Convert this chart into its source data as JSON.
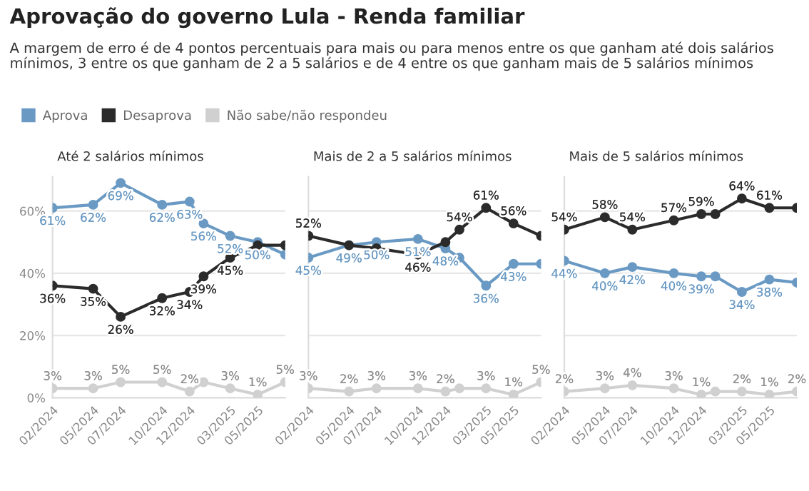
{
  "chart_data": [
    {
      "type": "line",
      "title": "Aprovação do governo Lula - Renda familiar",
      "subtitle": "A margem de erro é de 4 pontos percentuais para mais ou para menos entre os que ganham até dois salários mínimos, 3 entre os que ganham de 2 a 5 salários e de 4 entre os que ganham mais de 5 salários mínimos",
      "legend": "top",
      "grid": "y",
      "marker": "circle",
      "x": [
        "2024-02",
        "2024-05",
        "2024-07",
        "2024-10",
        "2024-12",
        "2025-01",
        "2025-03",
        "2025-05",
        "2025-07"
      ],
      "xlim": [
        "2024-02",
        "2025-07"
      ],
      "xticks": [
        {
          "value": "2024-02",
          "label": "02/2024"
        },
        {
          "value": "2024-05",
          "label": "05/2024"
        },
        {
          "value": "2024-07",
          "label": "07/2024"
        },
        {
          "value": "2024-10",
          "label": "10/2024"
        },
        {
          "value": "2024-12",
          "label": "12/2024"
        },
        {
          "value": "2025-03",
          "label": "03/2025"
        },
        {
          "value": "2025-05",
          "label": "05/2025"
        }
      ],
      "ylim": [
        0,
        71
      ],
      "yticks": [
        {
          "value": 0,
          "label": "0%"
        },
        {
          "value": 20,
          "label": "20%"
        },
        {
          "value": 40,
          "label": "40%"
        },
        {
          "value": 60,
          "label": "60%"
        }
      ],
      "annotations": [
        "Até 2 salários mínimos"
      ],
      "series": [
        {
          "name": "Aprova",
          "color": "#6a9ac4",
          "values": [
            61,
            62,
            69,
            62,
            63,
            56,
            52,
            50,
            46
          ],
          "value_labels": [
            "61%",
            "62%",
            "69%",
            "62%",
            "63%",
            "56%",
            "52%",
            "50%",
            null
          ]
        },
        {
          "name": "Desaprova",
          "color": "#2b2b2b",
          "values": [
            36,
            35,
            26,
            32,
            34,
            39,
            45,
            49,
            49
          ],
          "value_labels": [
            "36%",
            "35%",
            "26%",
            "32%",
            "34%",
            "39%",
            "45%",
            null,
            null
          ]
        },
        {
          "name": "Não sabe/não respondeu",
          "color": "#d0d0d0",
          "values": [
            3,
            3,
            5,
            5,
            2,
            5,
            3,
            1,
            5
          ],
          "value_labels": [
            "3%",
            "3%",
            "5%",
            "5%",
            "2%",
            null,
            "3%",
            "1%",
            "5%"
          ]
        }
      ]
    },
    {
      "type": "line",
      "grid": "y",
      "marker": "circle",
      "tick_labels": "x",
      "x": [
        "2024-02",
        "2024-05",
        "2024-07",
        "2024-10",
        "2024-12",
        "2025-01",
        "2025-03",
        "2025-05",
        "2025-07"
      ],
      "xlim": [
        "2024-02",
        "2025-07"
      ],
      "xticks": [
        {
          "value": "2024-02",
          "label": "02/2024"
        },
        {
          "value": "2024-05",
          "label": "05/2024"
        },
        {
          "value": "2024-07",
          "label": "07/2024"
        },
        {
          "value": "2024-10",
          "label": "10/2024"
        },
        {
          "value": "2024-12",
          "label": "12/2024"
        },
        {
          "value": "2025-03",
          "label": "03/2025"
        },
        {
          "value": "2025-05",
          "label": "05/2025"
        }
      ],
      "ylim": [
        0,
        71
      ],
      "yticks": [
        0,
        20,
        40,
        60
      ],
      "annotations": [
        "Mais de 2 a 5 salários mínimos"
      ],
      "series": [
        {
          "color": "#6a9ac4",
          "values": [
            45,
            49,
            50,
            51,
            48,
            45,
            36,
            43,
            43
          ],
          "value_labels": [
            "45%",
            "49%",
            "50%",
            "51%",
            "48%",
            null,
            "36%",
            "43%",
            null
          ]
        },
        {
          "color": "#2b2b2b",
          "values": [
            52,
            49,
            48,
            46,
            50,
            54,
            61,
            56,
            52
          ],
          "value_labels": [
            "52%",
            null,
            null,
            "46%",
            null,
            "54%",
            "61%",
            "56%",
            null
          ]
        },
        {
          "color": "#d0d0d0",
          "values": [
            3,
            2,
            3,
            3,
            2,
            3,
            3,
            1,
            5
          ],
          "value_labels": [
            "3%",
            "2%",
            "3%",
            "3%",
            "2%",
            null,
            "3%",
            "1%",
            "5%"
          ]
        }
      ]
    },
    {
      "type": "line",
      "grid": "y",
      "marker": "circle",
      "tick_labels": "x",
      "x": [
        "2024-02",
        "2024-05",
        "2024-07",
        "2024-10",
        "2024-12",
        "2025-01",
        "2025-03",
        "2025-05",
        "2025-07"
      ],
      "xlim": [
        "2024-02",
        "2025-07"
      ],
      "xticks": [
        {
          "value": "2024-02",
          "label": "02/2024"
        },
        {
          "value": "2024-05",
          "label": "05/2024"
        },
        {
          "value": "2024-07",
          "label": "07/2024"
        },
        {
          "value": "2024-10",
          "label": "10/2024"
        },
        {
          "value": "2024-12",
          "label": "12/2024"
        },
        {
          "value": "2025-03",
          "label": "03/2025"
        },
        {
          "value": "2025-05",
          "label": "05/2025"
        }
      ],
      "ylim": [
        0,
        71
      ],
      "yticks": [
        0,
        20,
        40,
        60
      ],
      "annotations": [
        "Mais de 5 salários mínimos"
      ],
      "series": [
        {
          "color": "#6a9ac4",
          "values": [
            44,
            40,
            42,
            40,
            39,
            39,
            34,
            38,
            37
          ],
          "value_labels": [
            "44%",
            "40%",
            "42%",
            "40%",
            "39%",
            null,
            "34%",
            "38%",
            null
          ]
        },
        {
          "color": "#2b2b2b",
          "values": [
            54,
            58,
            54,
            57,
            59,
            59,
            64,
            61,
            61
          ],
          "value_labels": [
            "54%",
            "58%",
            "54%",
            "57%",
            "59%",
            null,
            "64%",
            "61%",
            null
          ]
        },
        {
          "color": "#d0d0d0",
          "values": [
            2,
            3,
            4,
            3,
            1,
            2,
            2,
            1,
            2
          ],
          "value_labels": [
            "2%",
            "3%",
            "4%",
            "3%",
            "1%",
            null,
            "2%",
            "1%",
            "2%"
          ]
        }
      ]
    }
  ]
}
